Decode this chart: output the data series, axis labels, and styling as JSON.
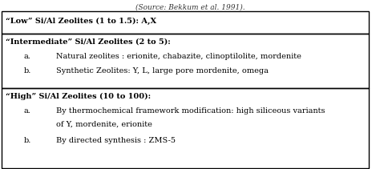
{
  "caption": "(Source: Bekkum et al. 1991).",
  "section1_header": "“Low” Si/Al Zeolites (1 to 1.5): A,X",
  "section2_header": "“Intermediate” Si/Al Zeolites (2 to 5):",
  "section2_items": [
    {
      "label": "a.",
      "text": "Natural zeolites : erionite, chabazite, clinoptilolite, mordenite"
    },
    {
      "label": "b.",
      "text": "Synthetic Zeolites: Y, L, large pore mordenite, omega"
    }
  ],
  "section3_header": "“High” Si/Al Zeolites (10 to 100):",
  "section3_items": [
    {
      "label": "a.",
      "line1": "By thermochemical framework modification: high siliceous variants",
      "line2": "of Y, mordenite, erionite"
    },
    {
      "label": "b.",
      "text": "By directed synthesis : ZMS-5"
    }
  ],
  "bg_color": "#ffffff",
  "border_color": "#000000",
  "font_size": 7.0,
  "bold_font_size": 7.0,
  "caption_font_size": 6.5,
  "figsize": [
    4.74,
    2.11
  ],
  "dpi": 100
}
